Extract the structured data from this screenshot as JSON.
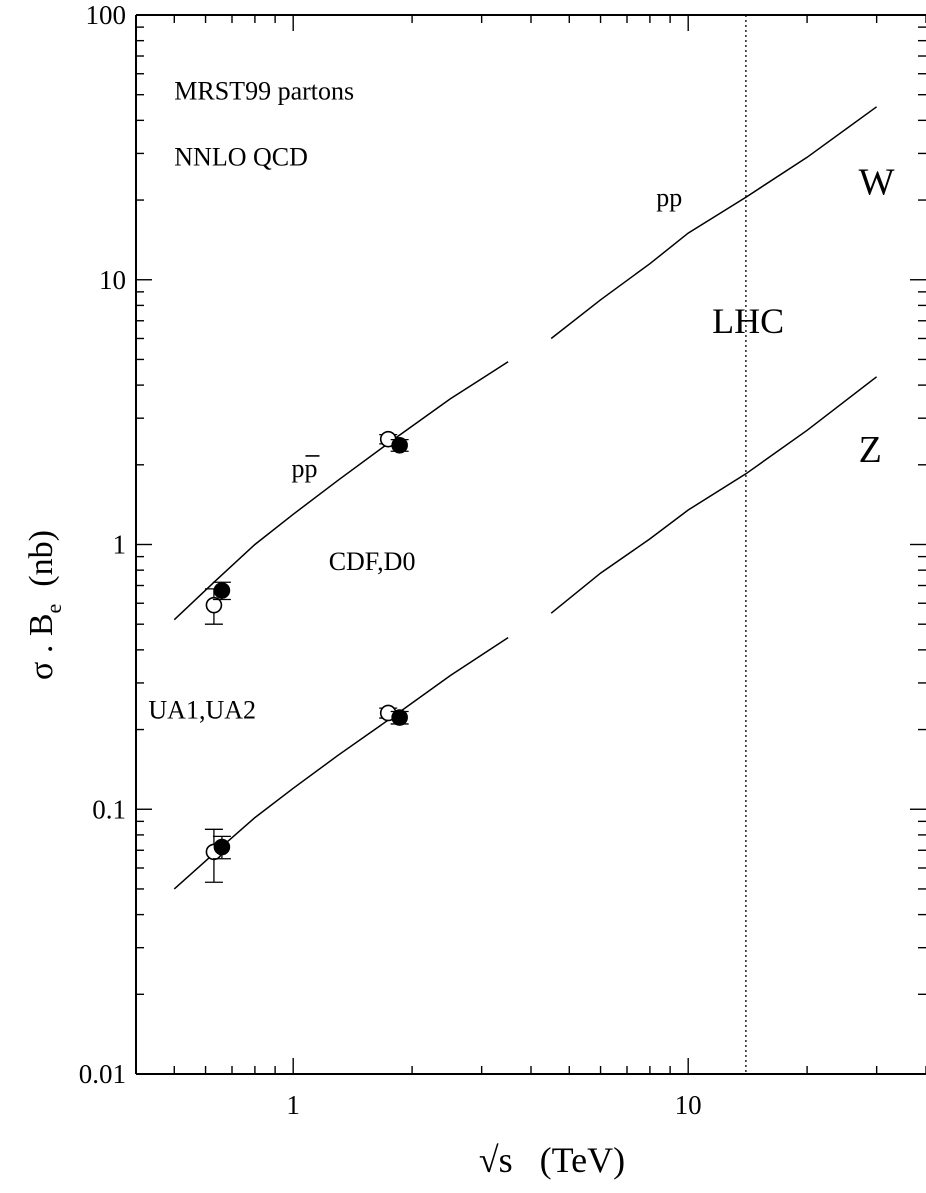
{
  "chart_data": {
    "type": "line",
    "x_scale": "log",
    "y_scale": "log",
    "xlim": [
      0.4,
      40
    ],
    "ylim": [
      0.01,
      100
    ],
    "xlabel": "√s   (TeV)",
    "ylabel_main": "σ . B",
    "ylabel_sub": "e",
    "ylabel_unit": "(nb)",
    "x_major_ticks": [
      1,
      10
    ],
    "x_tick_labels": [
      "1",
      "10"
    ],
    "y_major_ticks": [
      0.01,
      0.1,
      1,
      10,
      100
    ],
    "y_tick_labels": [
      "0.01",
      "0.1",
      "1",
      "10",
      "100"
    ],
    "grid": false,
    "series": [
      {
        "name": "W",
        "segments": [
          {
            "x": [
              0.5,
              0.63,
              0.8,
              1.0,
              1.3,
              1.8,
              2.5,
              3.5
            ],
            "y": [
              0.52,
              0.72,
              1.0,
              1.3,
              1.75,
              2.5,
              3.55,
              4.9
            ]
          },
          {
            "x": [
              4.5,
              6,
              8,
              10,
              14,
              20,
              30
            ],
            "y": [
              6.0,
              8.4,
              11.5,
              15.0,
              20.5,
              29.0,
              45.0
            ]
          }
        ]
      },
      {
        "name": "Z",
        "segments": [
          {
            "x": [
              0.5,
              0.63,
              0.8,
              1.0,
              1.3,
              1.8,
              2.5,
              3.5
            ],
            "y": [
              0.05,
              0.068,
              0.093,
              0.12,
              0.16,
              0.225,
              0.32,
              0.445
            ]
          },
          {
            "x": [
              4.5,
              6,
              8,
              10,
              14,
              20,
              30
            ],
            "y": [
              0.55,
              0.78,
              1.05,
              1.35,
              1.85,
              2.7,
              4.3
            ]
          }
        ]
      }
    ],
    "data_points": [
      {
        "x": 0.63,
        "y": 0.59,
        "err_lo": 0.09,
        "err_hi": 0.09,
        "filled": false
      },
      {
        "x": 0.66,
        "y": 0.67,
        "err_lo": 0.05,
        "err_hi": 0.05,
        "filled": true
      },
      {
        "x": 1.74,
        "y": 2.5,
        "err_lo": 0.1,
        "err_hi": 0.1,
        "filled": false
      },
      {
        "x": 1.86,
        "y": 2.37,
        "err_lo": 0.12,
        "err_hi": 0.12,
        "filled": true
      },
      {
        "x": 0.63,
        "y": 0.069,
        "err_lo": 0.016,
        "err_hi": 0.015,
        "filled": false
      },
      {
        "x": 0.66,
        "y": 0.072,
        "err_lo": 0.007,
        "err_hi": 0.007,
        "filled": true
      },
      {
        "x": 1.74,
        "y": 0.231,
        "err_lo": 0.01,
        "err_hi": 0.01,
        "filled": false
      },
      {
        "x": 1.86,
        "y": 0.222,
        "err_lo": 0.012,
        "err_hi": 0.012,
        "filled": true
      }
    ],
    "lhc_line_x": 14,
    "annotations": [
      {
        "text": "MRST99 partons",
        "x": 0.5,
        "y": 48
      },
      {
        "text": "NNLO QCD",
        "x": 0.5,
        "y": 27
      },
      {
        "text": "W",
        "x": 27,
        "y": 21
      },
      {
        "text": "pp",
        "x": 8.3,
        "y": 19
      },
      {
        "text": "LHC",
        "x": 11.5,
        "y": 6.3
      },
      {
        "text": "Z",
        "x": 27,
        "y": 2.05
      },
      {
        "text": "CDF,D0",
        "x": 1.23,
        "y": 0.8
      },
      {
        "text": "UA1,UA2",
        "x": 0.43,
        "y": 0.22
      }
    ],
    "ppbar_label": {
      "base": "p",
      "bar": "p",
      "x": 0.99,
      "y": 1.8
    }
  }
}
